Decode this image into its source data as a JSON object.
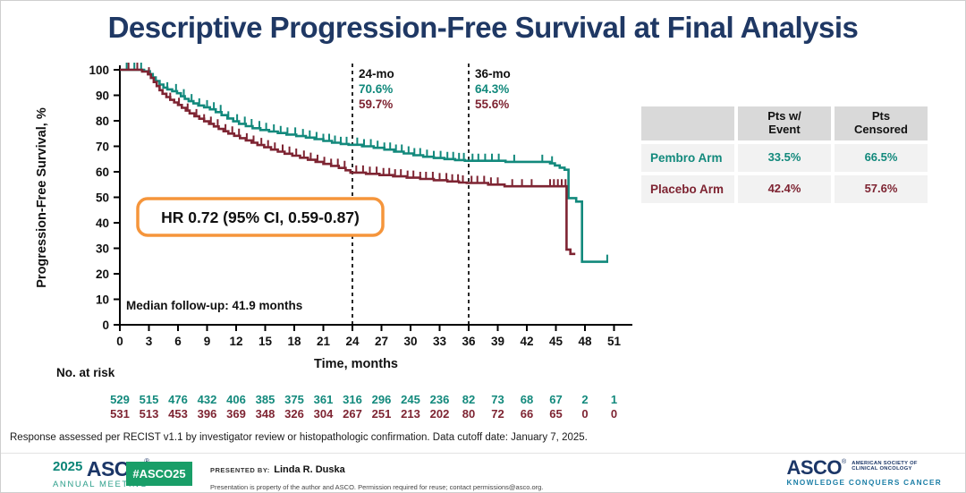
{
  "title": "Descriptive Progression-Free Survival at Final Analysis",
  "chart_data": {
    "type": "line",
    "subtype": "kaplan-meier-step",
    "title": "Descriptive Progression-Free Survival at Final Analysis",
    "xlabel": "Time, months",
    "ylabel": "Progression-Free Survival, %",
    "xlim": [
      0,
      51
    ],
    "ylim": [
      0,
      100
    ],
    "x_ticks": [
      0,
      3,
      6,
      9,
      12,
      15,
      18,
      21,
      24,
      27,
      30,
      33,
      36,
      39,
      42,
      45,
      48,
      51
    ],
    "y_ticks": [
      0,
      10,
      20,
      30,
      40,
      50,
      60,
      70,
      80,
      90,
      100
    ],
    "grid": false,
    "series": [
      {
        "name": "Pembro Arm",
        "color": "#12897C",
        "end_month": 50.4,
        "steps": [
          [
            0,
            100
          ],
          [
            2.5,
            99.4
          ],
          [
            3.1,
            98.3
          ],
          [
            3.4,
            97.0
          ],
          [
            3.7,
            95.6
          ],
          [
            4.1,
            94.2
          ],
          [
            4.5,
            93.0
          ],
          [
            4.9,
            92.3
          ],
          [
            5.4,
            91.6
          ],
          [
            5.9,
            90.8
          ],
          [
            6.3,
            89.6
          ],
          [
            6.7,
            88.6
          ],
          [
            7.1,
            87.7
          ],
          [
            7.6,
            86.8
          ],
          [
            8.1,
            86.0
          ],
          [
            8.7,
            85.3
          ],
          [
            9.3,
            84.5
          ],
          [
            9.9,
            83.4
          ],
          [
            10.5,
            82.2
          ],
          [
            11.1,
            80.9
          ],
          [
            11.7,
            79.8
          ],
          [
            12.3,
            78.8
          ],
          [
            13.0,
            77.9
          ],
          [
            13.7,
            77.1
          ],
          [
            14.5,
            76.4
          ],
          [
            15.4,
            75.8
          ],
          [
            16.3,
            75.2
          ],
          [
            17.2,
            74.6
          ],
          [
            18.2,
            74.0
          ],
          [
            19.2,
            73.4
          ],
          [
            20.1,
            72.8
          ],
          [
            21.0,
            72.1
          ],
          [
            21.9,
            71.4
          ],
          [
            22.8,
            70.9
          ],
          [
            23.6,
            70.6
          ],
          [
            25.0,
            70.0
          ],
          [
            26.2,
            69.4
          ],
          [
            27.3,
            68.7
          ],
          [
            28.3,
            67.9
          ],
          [
            29.3,
            67.2
          ],
          [
            30.3,
            66.5
          ],
          [
            31.3,
            65.9
          ],
          [
            32.4,
            65.4
          ],
          [
            33.5,
            65.0
          ],
          [
            34.6,
            64.6
          ],
          [
            35.6,
            64.3
          ],
          [
            39.8,
            63.9
          ],
          [
            44.4,
            63.3
          ],
          [
            44.9,
            62.5
          ],
          [
            45.4,
            61.6
          ],
          [
            45.9,
            60.8
          ],
          [
            46.3,
            49.7
          ],
          [
            47.1,
            48.3
          ],
          [
            47.7,
            24.7
          ]
        ],
        "censor_months": [
          0.7,
          1.5,
          2.2,
          4.9,
          5.8,
          6.6,
          7.4,
          8.2,
          9.0,
          9.7,
          10.4,
          11.2,
          12.1,
          12.9,
          13.6,
          14.4,
          15.1,
          15.9,
          16.6,
          17.3,
          18.1,
          18.9,
          19.6,
          20.3,
          21.0,
          21.6,
          22.2,
          22.8,
          23.4,
          24.5,
          25.2,
          25.9,
          26.6,
          27.3,
          27.9,
          28.5,
          29.1,
          29.8,
          30.4,
          31.0,
          31.7,
          32.4,
          33.1,
          33.8,
          34.4,
          35.0,
          35.5,
          36.4,
          37.0,
          37.7,
          38.4,
          39.1,
          40.7,
          43.6,
          44.6,
          50.3
        ]
      },
      {
        "name": "Placebo Arm",
        "color": "#7E2432",
        "end_month": 47.0,
        "steps": [
          [
            0,
            100
          ],
          [
            2.3,
            99.3
          ],
          [
            2.9,
            98.2
          ],
          [
            3.2,
            96.8
          ],
          [
            3.5,
            95.2
          ],
          [
            3.8,
            93.6
          ],
          [
            4.1,
            92.0
          ],
          [
            4.4,
            90.6
          ],
          [
            4.8,
            89.3
          ],
          [
            5.2,
            88.2
          ],
          [
            5.6,
            87.2
          ],
          [
            6.0,
            86.2
          ],
          [
            6.4,
            85.1
          ],
          [
            6.8,
            84.0
          ],
          [
            7.2,
            82.9
          ],
          [
            7.7,
            81.8
          ],
          [
            8.2,
            80.8
          ],
          [
            8.7,
            79.8
          ],
          [
            9.2,
            78.8
          ],
          [
            9.7,
            77.8
          ],
          [
            10.2,
            76.8
          ],
          [
            10.7,
            75.9
          ],
          [
            11.2,
            75.0
          ],
          [
            11.8,
            74.1
          ],
          [
            12.4,
            73.2
          ],
          [
            13.0,
            72.3
          ],
          [
            13.6,
            71.4
          ],
          [
            14.2,
            70.5
          ],
          [
            14.9,
            69.6
          ],
          [
            15.6,
            68.7
          ],
          [
            16.3,
            67.9
          ],
          [
            17.0,
            67.1
          ],
          [
            17.8,
            66.3
          ],
          [
            18.6,
            65.5
          ],
          [
            19.4,
            64.7
          ],
          [
            20.2,
            63.9
          ],
          [
            21.0,
            63.1
          ],
          [
            21.8,
            62.3
          ],
          [
            22.6,
            61.5
          ],
          [
            23.3,
            60.6
          ],
          [
            23.8,
            59.7
          ],
          [
            25.4,
            59.2
          ],
          [
            26.8,
            58.7
          ],
          [
            28.2,
            58.2
          ],
          [
            29.6,
            57.7
          ],
          [
            31.0,
            57.2
          ],
          [
            32.4,
            56.7
          ],
          [
            33.8,
            56.2
          ],
          [
            35.0,
            55.8
          ],
          [
            35.8,
            55.6
          ],
          [
            38.0,
            55.0
          ],
          [
            39.7,
            54.3
          ],
          [
            46.1,
            29.5
          ],
          [
            46.5,
            27.8
          ]
        ],
        "censor_months": [
          0.9,
          1.8,
          3.0,
          5.2,
          6.1,
          7.0,
          7.9,
          8.7,
          9.4,
          10.1,
          10.9,
          11.6,
          12.3,
          13.1,
          13.8,
          14.6,
          15.3,
          16.0,
          16.8,
          17.5,
          18.2,
          19.0,
          19.7,
          20.4,
          21.1,
          21.8,
          22.5,
          23.2,
          24.4,
          25.1,
          25.8,
          26.5,
          27.2,
          27.8,
          28.4,
          29.0,
          29.7,
          30.3,
          31.0,
          31.6,
          32.3,
          33.0,
          33.7,
          34.3,
          34.9,
          35.4,
          36.3,
          36.9,
          37.6,
          38.3,
          39.0,
          40.5,
          41.5,
          42.5,
          44.4,
          44.8,
          45.2,
          45.6,
          46.0
        ]
      }
    ],
    "landmarks": [
      {
        "month": 24,
        "label": "24-mo",
        "values": [
          "70.6%",
          "59.7%"
        ]
      },
      {
        "month": 36,
        "label": "36-mo",
        "values": [
          "64.3%",
          "55.6%"
        ]
      }
    ],
    "hr_annotation": "HR 0.72 (95% CI, 0.59-0.87)",
    "median_followup": "Median follow-up: 41.9 months",
    "risk_table": {
      "label": "No. at risk",
      "rows": [
        {
          "name": "Pembro Arm",
          "color": "#12897C",
          "values": [
            "529",
            "515",
            "476",
            "432",
            "406",
            "385",
            "375",
            "361",
            "316",
            "296",
            "245",
            "236",
            "82",
            "73",
            "68",
            "67",
            "2",
            "1"
          ]
        },
        {
          "name": "Placebo Arm",
          "color": "#7E2432",
          "values": [
            "531",
            "513",
            "453",
            "396",
            "369",
            "348",
            "326",
            "304",
            "267",
            "251",
            "213",
            "202",
            "80",
            "72",
            "66",
            "65",
            "0",
            "0"
          ]
        }
      ]
    }
  },
  "side_table": {
    "headers": [
      "",
      "Pts w/\nEvent",
      "Pts\nCensored"
    ],
    "rows": [
      {
        "label": "Pembro Arm",
        "color": "#12897C",
        "values": [
          "33.5%",
          "66.5%"
        ]
      },
      {
        "label": "Placebo Arm",
        "color": "#7E2432",
        "values": [
          "42.4%",
          "57.6%"
        ]
      }
    ]
  },
  "footnote": "Response assessed per RECIST v1.1 by investigator review or histopathologic confirmation. Data cutoff date: January 7, 2025.",
  "footer": {
    "meeting_year": "2025",
    "meeting_org": "ASCO",
    "meeting_name": "ANNUAL MEETING",
    "hashtag": "#ASCO25",
    "presented_by_label": "PRESENTED BY:",
    "presenter": "Linda R. Duska",
    "disclaimer": "Presentation is property of the author and ASCO. Permission required for reuse; contact permissions@asco.org.",
    "org_name": "ASCO",
    "org_subtitle": "AMERICAN SOCIETY OF\nCLINICAL ONCOLOGY",
    "org_tagline": "KNOWLEDGE CONQUERS CANCER"
  },
  "colors": {
    "title_navy": "#1F3864",
    "pembro_teal": "#12897C",
    "placebo_maroon": "#7E2432",
    "hr_box_orange": "#F5953B",
    "badge_green": "#199E68",
    "tagline_blue": "#1B7EA6"
  }
}
